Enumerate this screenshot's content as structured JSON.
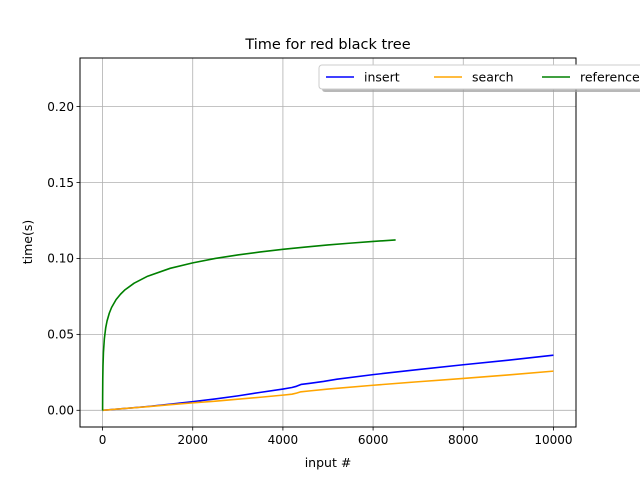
{
  "chart_data": {
    "type": "line",
    "title": "Time for red black tree",
    "xlabel": "input #",
    "ylabel": "time(s)",
    "xlim": [
      -500,
      10500
    ],
    "ylim": [
      -0.011,
      0.232
    ],
    "xticks": [
      0,
      2000,
      4000,
      6000,
      8000,
      10000
    ],
    "xtick_labels": [
      "0",
      "2000",
      "4000",
      "6000",
      "8000",
      "10000"
    ],
    "yticks": [
      0.0,
      0.05,
      0.1,
      0.15,
      0.2
    ],
    "ytick_labels": [
      "0.00",
      "0.05",
      "0.10",
      "0.15",
      "0.20"
    ],
    "grid": true,
    "legend": {
      "placement": "upper-right",
      "columns": 3,
      "shadow": true
    },
    "series": [
      {
        "name": "insert",
        "color": "#0000ff",
        "x": [
          0,
          500,
          1000,
          1500,
          2000,
          2500,
          3000,
          3500,
          4000,
          4200,
          4300,
          4400,
          4600,
          4900,
          5200,
          6000,
          7000,
          8000,
          9000,
          10000
        ],
        "y": [
          0.0,
          0.0012,
          0.0025,
          0.004,
          0.0057,
          0.0075,
          0.0095,
          0.0118,
          0.014,
          0.015,
          0.0158,
          0.017,
          0.0178,
          0.019,
          0.0205,
          0.0235,
          0.0268,
          0.03,
          0.033,
          0.0363
        ]
      },
      {
        "name": "search",
        "color": "#ffa500",
        "x": [
          0,
          500,
          1000,
          1500,
          2000,
          2500,
          3000,
          3500,
          4000,
          4200,
          4300,
          4400,
          4600,
          5000,
          6000,
          7000,
          8000,
          9000,
          10000
        ],
        "y": [
          0.0,
          0.0012,
          0.0024,
          0.0037,
          0.0049,
          0.006,
          0.0073,
          0.0086,
          0.01,
          0.0106,
          0.0113,
          0.0122,
          0.0128,
          0.014,
          0.0165,
          0.0188,
          0.021,
          0.0233,
          0.0258
        ]
      },
      {
        "name": "reference",
        "color": "#008000",
        "x": [
          0,
          1,
          2,
          5,
          10,
          20,
          40,
          70,
          100,
          150,
          200,
          300,
          400,
          500,
          700,
          1000,
          1500,
          2000,
          2500,
          3000,
          3500,
          4000,
          4500,
          5000,
          5500,
          6000,
          6500
        ],
        "y": [
          0.0,
          0.0,
          0.0088,
          0.0206,
          0.0294,
          0.0383,
          0.0471,
          0.0543,
          0.0588,
          0.064,
          0.0677,
          0.0729,
          0.0765,
          0.0794,
          0.0837,
          0.0883,
          0.0935,
          0.0971,
          0.1,
          0.1023,
          0.1043,
          0.106,
          0.1075,
          0.1089,
          0.1101,
          0.1112,
          0.1122
        ]
      }
    ]
  }
}
